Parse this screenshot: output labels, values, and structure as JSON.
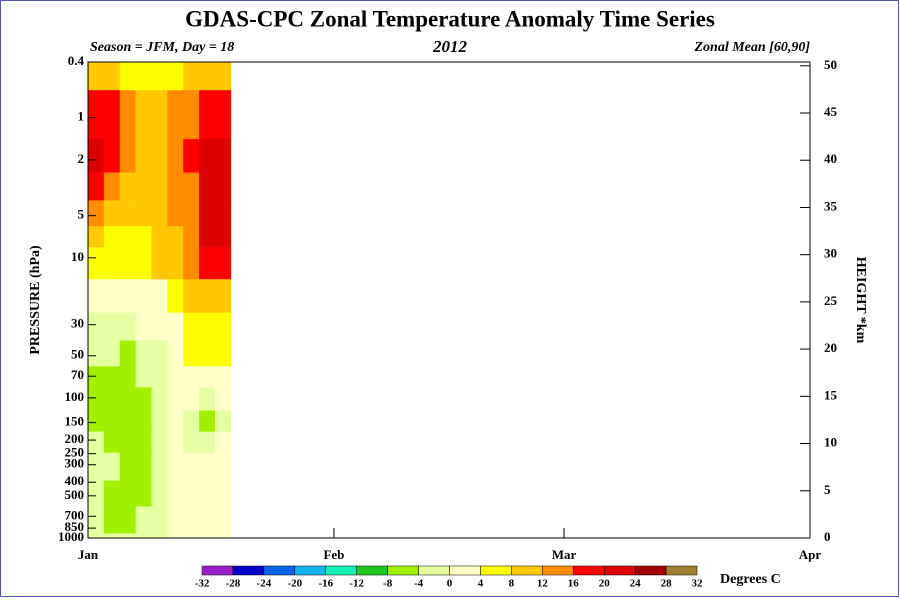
{
  "chart_data": {
    "type": "contour",
    "title": "GDAS-CPC Zonal Temperature Anomaly Time Series",
    "subtitle": "2012",
    "annotations": [
      "Season = JFM, Day =  18",
      "Zonal Mean [60,90]"
    ],
    "y_label": "PRESSURE (hPa)",
    "y2_label": "HEIGHT *km",
    "x": [
      1,
      3,
      5,
      7,
      9,
      11,
      13,
      15,
      17
    ],
    "xlim": [
      0,
      91
    ],
    "xticks": [
      {
        "value": 0,
        "label": "Jan"
      },
      {
        "value": 31,
        "label": "Feb"
      },
      {
        "value": 60,
        "label": "Mar"
      },
      {
        "value": 91,
        "label": "Apr"
      }
    ],
    "y": [
      1000,
      850,
      700,
      500,
      300,
      200,
      150,
      100,
      70,
      50,
      30,
      20,
      10,
      7,
      5,
      3,
      2,
      1,
      0.4
    ],
    "ylim": [
      1000,
      0.4
    ],
    "log_y": true,
    "yticks": [
      0.4,
      1,
      2,
      5,
      10,
      30,
      50,
      70,
      100,
      150,
      200,
      250,
      300,
      400,
      500,
      700,
      850,
      1000
    ],
    "y2lim": [
      0,
      50.4
    ],
    "y2ticks": [
      0,
      5,
      10,
      15,
      20,
      25,
      30,
      35,
      40,
      45,
      50
    ],
    "z": [
      [
        -2,
        -3,
        -3,
        -2,
        -1,
        1,
        1,
        1,
        1
      ],
      [
        -3,
        -5,
        -5,
        -3,
        -2,
        1,
        1,
        1,
        1
      ],
      [
        -3,
        -5,
        -6,
        -4,
        -3,
        1,
        1,
        1,
        1
      ],
      [
        -3,
        -5,
        -5,
        -5,
        -4,
        1,
        1,
        1,
        1
      ],
      [
        -3,
        -4,
        -5,
        -5,
        -4,
        1,
        1,
        1,
        1
      ],
      [
        -4,
        -5,
        -5,
        -5,
        -4,
        1,
        -1,
        -1,
        1
      ],
      [
        -5,
        -5,
        -5,
        -5,
        -4,
        1,
        -3,
        -5,
        -2
      ],
      [
        -5,
        -5,
        -5,
        -5,
        -3,
        1,
        1,
        -1,
        1
      ],
      [
        -5,
        -5,
        -5,
        -4,
        -2,
        1,
        2,
        2,
        2
      ],
      [
        -4,
        -4,
        -5,
        -3,
        -1,
        2,
        4,
        5,
        5
      ],
      [
        -2,
        -2,
        -2,
        1,
        2,
        3,
        6,
        7,
        7
      ],
      [
        2,
        2,
        2,
        2,
        3,
        6,
        9,
        10,
        10
      ],
      [
        6,
        5,
        5,
        5,
        8,
        10,
        14,
        17,
        18
      ],
      [
        9,
        7,
        6,
        6,
        9,
        11,
        15,
        20,
        21
      ],
      [
        13,
        10,
        8,
        8,
        10,
        12,
        15,
        21,
        22
      ],
      [
        18,
        13,
        10,
        9,
        10,
        12,
        15,
        21,
        22
      ],
      [
        22,
        17,
        12,
        11,
        11,
        13,
        16,
        21,
        22
      ],
      [
        19,
        17,
        13,
        11,
        11,
        13,
        15,
        17,
        19
      ],
      [
        10,
        9,
        7,
        5,
        5,
        7,
        9,
        8,
        8
      ]
    ],
    "colorbar": {
      "label": "Degrees C",
      "levels": [
        -32,
        -28,
        -24,
        -20,
        -16,
        -12,
        -8,
        -4,
        0,
        4,
        8,
        12,
        16,
        20,
        24,
        28,
        32
      ],
      "colors": [
        "#9a1fc8",
        "#0000c8",
        "#0a64f0",
        "#14b4f0",
        "#14f0b4",
        "#1ec81e",
        "#a0f000",
        "#e6ffa0",
        "#ffffc8",
        "#ffff00",
        "#ffc800",
        "#ff8c00",
        "#ff0000",
        "#dc0000",
        "#a00000",
        "#a08030"
      ]
    }
  }
}
